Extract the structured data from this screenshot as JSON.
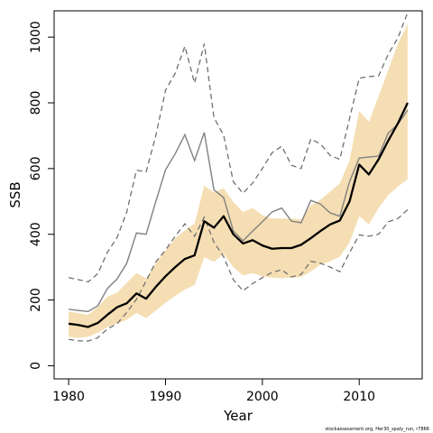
{
  "chart_data": {
    "type": "line",
    "xlabel": "Year",
    "ylabel": "SSB",
    "credit": "stockassessment.org, Her30_spaly_run, r7866",
    "xlim": [
      1978.5,
      2016.5
    ],
    "ylim": [
      -40,
      1080
    ],
    "xticks": [
      1980,
      1990,
      2000,
      2010
    ],
    "yticks": [
      0,
      200,
      400,
      600,
      800,
      1000
    ],
    "grid": false,
    "legend": "none",
    "colors": {
      "band": "#f5deb3",
      "estimate": "#000000",
      "previous": "#808080",
      "previous_bounds": "#707070"
    },
    "x": [
      1980,
      1981,
      1982,
      1983,
      1984,
      1985,
      1986,
      1987,
      1988,
      1989,
      1990,
      1991,
      1992,
      1993,
      1994,
      1995,
      1996,
      1997,
      1998,
      1999,
      2000,
      2001,
      2002,
      2003,
      2004,
      2005,
      2006,
      2007,
      2008,
      2009,
      2010,
      2011,
      2012,
      2013,
      2014,
      2015
    ],
    "series": [
      {
        "role": "band-lower",
        "values": [
          88,
          85,
          88,
          100,
          118,
          128,
          140,
          160,
          145,
          168,
          192,
          212,
          232,
          245,
          330,
          316,
          340,
          300,
          275,
          282,
          272,
          268,
          266,
          268,
          270,
          287,
          308,
          318,
          332,
          375,
          455,
          430,
          480,
          520,
          545,
          568
        ]
      },
      {
        "role": "band-upper",
        "values": [
          165,
          160,
          155,
          178,
          210,
          222,
          252,
          282,
          266,
          312,
          350,
          388,
          412,
          432,
          548,
          528,
          540,
          498,
          468,
          480,
          458,
          448,
          448,
          448,
          445,
          488,
          505,
          530,
          555,
          625,
          775,
          742,
          820,
          900,
          980,
          1040
        ]
      },
      {
        "role": "estimate",
        "values": [
          128,
          124,
          118,
          130,
          155,
          178,
          190,
          220,
          204,
          240,
          272,
          300,
          325,
          336,
          440,
          420,
          455,
          400,
          372,
          382,
          366,
          356,
          358,
          358,
          368,
          388,
          410,
          430,
          442,
          500,
          612,
          582,
          628,
          685,
          738,
          800
        ]
      },
      {
        "role": "previous",
        "values": [
          172,
          168,
          165,
          182,
          235,
          264,
          312,
          404,
          400,
          500,
          596,
          645,
          703,
          624,
          710,
          535,
          512,
          410,
          380,
          410,
          438,
          468,
          480,
          440,
          435,
          503,
          492,
          465,
          455,
          560,
          632,
          635,
          638,
          708,
          735,
          778
        ]
      },
      {
        "role": "previous-lower",
        "values": [
          80,
          76,
          75,
          85,
          112,
          128,
          162,
          202,
          258,
          316,
          352,
          394,
          432,
          394,
          452,
          376,
          332,
          262,
          228,
          250,
          268,
          284,
          292,
          270,
          278,
          318,
          312,
          300,
          286,
          344,
          398,
          394,
          400,
          438,
          448,
          475
        ]
      },
      {
        "role": "previous-upper",
        "values": [
          268,
          262,
          255,
          280,
          345,
          390,
          468,
          595,
          590,
          700,
          838,
          890,
          972,
          860,
          980,
          755,
          702,
          560,
          525,
          556,
          600,
          648,
          668,
          610,
          600,
          690,
          675,
          640,
          628,
          752,
          875,
          880,
          882,
          948,
          998,
          1075
        ]
      }
    ]
  }
}
